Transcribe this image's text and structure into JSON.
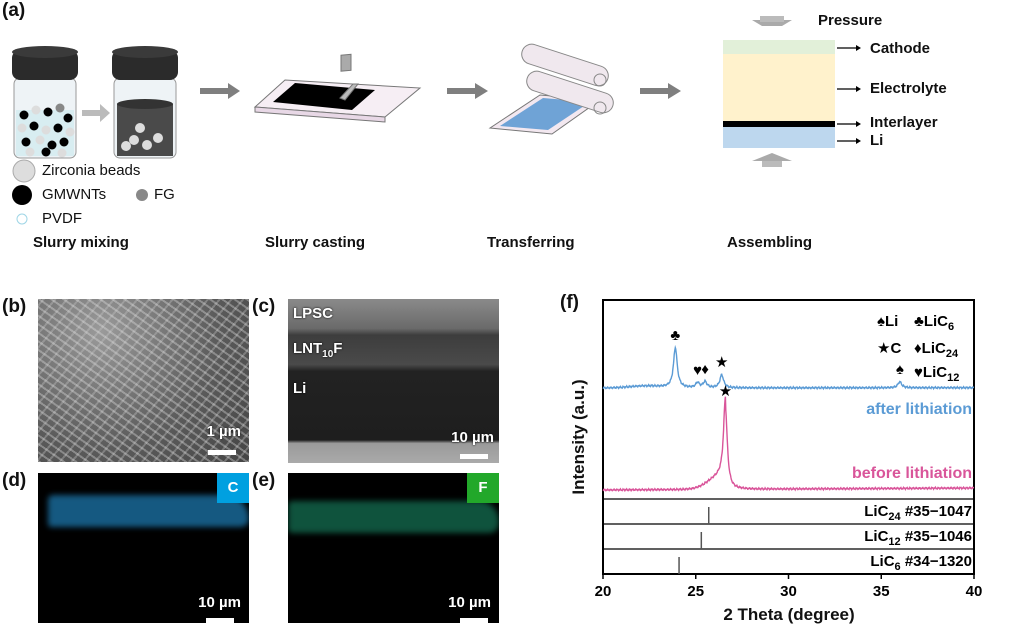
{
  "panel_labels": {
    "a": "(a)",
    "b": "(b)",
    "c": "(c)",
    "d": "(d)",
    "e": "(e)",
    "f": "(f)"
  },
  "schematic": {
    "legend": {
      "zirconia": "Zirconia beads",
      "gmwnts": "GMWNTs",
      "fg": "FG",
      "pvdf": "PVDF"
    },
    "steps": [
      "Slurry mixing",
      "Slurry casting",
      "Transferring",
      "Assembling"
    ],
    "stack": {
      "pressure": "Pressure",
      "cathode": "Cathode",
      "electrolyte": "Electrolyte",
      "interlayer": "Interlayer",
      "li": "Li"
    },
    "colors": {
      "cathode": "#e2f0d9",
      "electrolyte": "#fff2cc",
      "interlayer": "#000000",
      "li": "#bdd7ee",
      "arrow": "#7f7f7f"
    }
  },
  "micrographs": {
    "b": {
      "scale": "1 µm"
    },
    "c": {
      "layers": [
        "LPSC",
        "LNT",
        "10",
        "F",
        "Li"
      ],
      "scale": "10 µm"
    },
    "d": {
      "element": "C",
      "element_color": "#00a0e0",
      "map_color": "#1f7fb8",
      "scale": "10 µm"
    },
    "e": {
      "element": "F",
      "element_color": "#22a82a",
      "map_color": "#1a8a66",
      "scale": "10 µm"
    }
  },
  "chart_data": {
    "type": "line",
    "xlabel": "2 Theta (degree)",
    "ylabel": "Intensity (a.u.)",
    "xlim": [
      20,
      40
    ],
    "xticks": [
      20,
      25,
      30,
      35,
      40
    ],
    "grid": false,
    "legend": {
      "placement": "top-right",
      "entries": [
        {
          "symbol": "♠",
          "label": "Li",
          "sub": ""
        },
        {
          "symbol": "♣",
          "label": "LiC",
          "sub": "6"
        },
        {
          "symbol": "★",
          "label": "C",
          "sub": ""
        },
        {
          "symbol": "♦",
          "label": "LiC",
          "sub": "24"
        },
        {
          "symbol": "♥",
          "label": "LiC",
          "sub": "12"
        }
      ]
    },
    "series": [
      {
        "name": "after lithiation",
        "color": "#5b9bd5",
        "peaks": [
          {
            "two_theta": 23.9,
            "intensity": 40,
            "marker": "♣"
          },
          {
            "two_theta": 25.1,
            "intensity": 5,
            "marker": "♥"
          },
          {
            "two_theta": 25.5,
            "intensity": 6,
            "marker": "♦"
          },
          {
            "two_theta": 26.4,
            "intensity": 13,
            "marker": "★"
          },
          {
            "two_theta": 36.0,
            "intensity": 6,
            "marker": "♠"
          }
        ]
      },
      {
        "name": "before lithiation",
        "color": "#d9559a",
        "peaks": [
          {
            "two_theta": 26.6,
            "intensity": 82,
            "marker": "★"
          }
        ]
      }
    ],
    "references": [
      {
        "phase": "LiC",
        "sub": "24",
        "card": "#35−1047",
        "two_theta": 25.7
      },
      {
        "phase": "LiC",
        "sub": "12",
        "card": "#35−1046",
        "two_theta": 25.3
      },
      {
        "phase": "LiC",
        "sub": "6",
        "card": "#34−1320",
        "two_theta": 24.1
      }
    ]
  }
}
